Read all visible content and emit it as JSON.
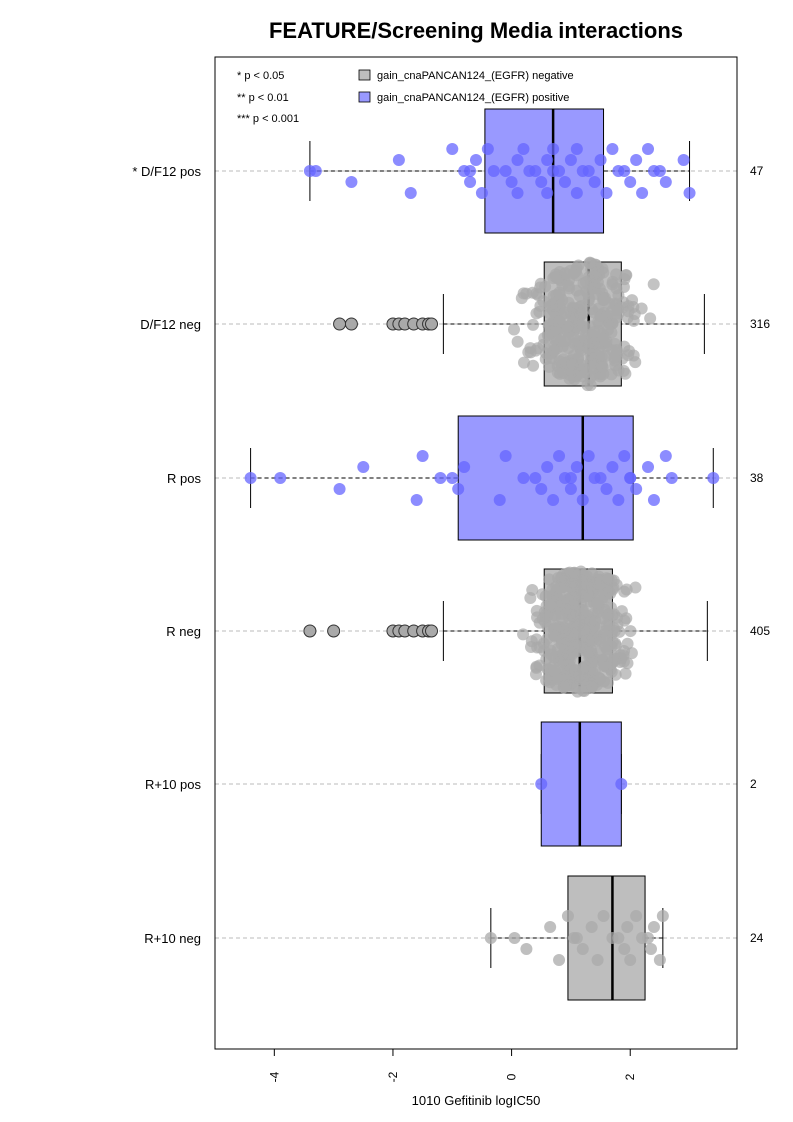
{
  "chart_data": {
    "type": "box",
    "title": "FEATURE/Screening Media interactions",
    "xlabel": "1010 Gefitinib logIC50",
    "xlim": [
      -5.0,
      3.8
    ],
    "xticks": [
      -4,
      -2,
      0,
      2
    ],
    "xtick_labels": [
      "-4",
      "-2",
      "0",
      "2"
    ],
    "significance_legend": [
      "* p < 0.05",
      "** p < 0.01",
      "*** p < 0.001"
    ],
    "colors": {
      "negative_fill": "#bebebe",
      "negative_point": "#a9a9a9",
      "positive_fill": "#9999ff",
      "positive_point": "#6666ff",
      "grid": "#bbbbbb"
    },
    "series": [
      {
        "name": "gain_cnaPANCAN124_(EGFR) negative",
        "color": "#bebebe"
      },
      {
        "name": "gain_cnaPANCAN124_(EGFR) positive",
        "color": "#9999ff"
      }
    ],
    "groups": [
      {
        "label": "* D/F12 pos",
        "count": "47",
        "status": "positive",
        "whisker_low": -3.4,
        "q1": -0.45,
        "median": 0.7,
        "q3": 1.55,
        "whisker_high": 3.0,
        "points": [
          -3.4,
          -3.3,
          -2.7,
          -1.9,
          -1.7,
          -1.0,
          -0.8,
          -0.7,
          -0.7,
          -0.6,
          -0.5,
          -0.4,
          -0.3,
          -0.1,
          0.0,
          0.1,
          0.1,
          0.2,
          0.3,
          0.4,
          0.5,
          0.6,
          0.6,
          0.7,
          0.7,
          0.8,
          0.9,
          1.0,
          1.1,
          1.1,
          1.2,
          1.3,
          1.4,
          1.5,
          1.6,
          1.7,
          1.8,
          1.9,
          2.0,
          2.1,
          2.2,
          2.3,
          2.4,
          2.5,
          2.6,
          2.9,
          3.0
        ],
        "outliers": []
      },
      {
        "label": "D/F12 neg",
        "count": "316",
        "status": "negative",
        "whisker_low": -1.15,
        "q1": 0.55,
        "median": 1.3,
        "q3": 1.85,
        "whisker_high": 3.25,
        "points": [],
        "outliers": [
          -2.9,
          -2.7,
          -2.0,
          -1.9,
          -1.8,
          -1.65,
          -1.5,
          -1.4,
          -1.35
        ]
      },
      {
        "label": "R pos",
        "count": "38",
        "status": "positive",
        "whisker_low": -4.4,
        "q1": -0.9,
        "median": 1.2,
        "q3": 2.05,
        "whisker_high": 3.4,
        "points": [
          -4.4,
          -3.9,
          -2.9,
          -2.5,
          -1.6,
          -1.5,
          -1.2,
          -1.0,
          -0.9,
          -0.8,
          -0.2,
          -0.1,
          0.2,
          0.4,
          0.5,
          0.6,
          0.7,
          0.8,
          0.9,
          1.0,
          1.0,
          1.1,
          1.2,
          1.3,
          1.4,
          1.5,
          1.6,
          1.7,
          1.8,
          1.9,
          2.0,
          2.0,
          2.1,
          2.3,
          2.4,
          2.6,
          2.7,
          3.4
        ],
        "outliers": []
      },
      {
        "label": "R neg",
        "count": "405",
        "status": "negative",
        "whisker_low": -1.15,
        "q1": 0.55,
        "median": 1.15,
        "q3": 1.7,
        "whisker_high": 3.3,
        "points": [],
        "outliers": [
          -3.4,
          -3.0,
          -2.0,
          -1.9,
          -1.8,
          -1.65,
          -1.5,
          -1.4,
          -1.35
        ]
      },
      {
        "label": "R+10 pos",
        "count": "2",
        "status": "positive",
        "whisker_low": 0.5,
        "q1": 0.5,
        "median": 1.15,
        "q3": 1.85,
        "whisker_high": 1.85,
        "points": [
          0.5,
          1.85
        ],
        "outliers": []
      },
      {
        "label": "R+10 neg",
        "count": "24",
        "status": "negative",
        "whisker_low": -0.35,
        "q1": 0.95,
        "median": 1.7,
        "q3": 2.25,
        "whisker_high": 2.55,
        "points": [
          -0.35,
          0.05,
          0.25,
          0.65,
          0.8,
          0.95,
          1.05,
          1.1,
          1.2,
          1.35,
          1.45,
          1.55,
          1.7,
          1.8,
          1.9,
          1.95,
          2.0,
          2.1,
          2.2,
          2.3,
          2.35,
          2.4,
          2.5,
          2.55
        ],
        "outliers": []
      }
    ]
  }
}
